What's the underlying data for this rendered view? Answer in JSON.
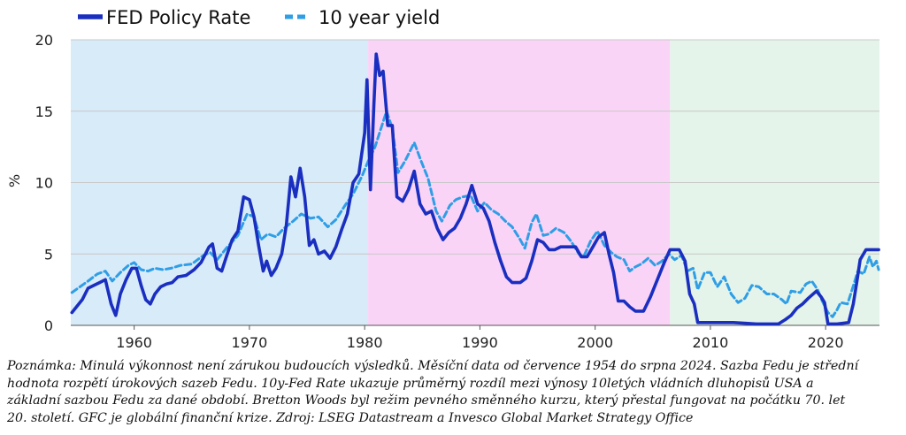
{
  "chart_data": {
    "type": "line",
    "ylabel": "%",
    "xlim": [
      1954.5,
      2024.67
    ],
    "ylim": [
      0,
      20
    ],
    "xticks": [
      1960,
      1970,
      1980,
      1990,
      2000,
      2010,
      2020
    ],
    "yticks": [
      0,
      5,
      10,
      15,
      20
    ],
    "grid": "horizontal",
    "legend": "top-left",
    "regions": [
      {
        "from": 1954.5,
        "to": 1980.3,
        "color": "#d8ebf9"
      },
      {
        "from": 1980.3,
        "to": 2006.5,
        "color": "#fad4f7"
      },
      {
        "from": 2006.5,
        "to": 2024.67,
        "color": "#e4f4ea"
      }
    ],
    "series": [
      {
        "name": "FED Policy Rate",
        "style": "solid",
        "color": "#1a2fc0",
        "points": [
          [
            1954.6,
            0.9
          ],
          [
            1955,
            1.3
          ],
          [
            1955.5,
            1.8
          ],
          [
            1956,
            2.6
          ],
          [
            1956.5,
            2.8
          ],
          [
            1957,
            3.0
          ],
          [
            1957.5,
            3.2
          ],
          [
            1958,
            1.5
          ],
          [
            1958.4,
            0.7
          ],
          [
            1958.8,
            2.2
          ],
          [
            1959.3,
            3.2
          ],
          [
            1959.8,
            4.0
          ],
          [
            1960.2,
            4.0
          ],
          [
            1960.6,
            2.8
          ],
          [
            1961,
            1.8
          ],
          [
            1961.4,
            1.5
          ],
          [
            1961.8,
            2.2
          ],
          [
            1962.3,
            2.7
          ],
          [
            1962.8,
            2.9
          ],
          [
            1963.3,
            3.0
          ],
          [
            1963.8,
            3.4
          ],
          [
            1964.5,
            3.5
          ],
          [
            1965.2,
            3.9
          ],
          [
            1965.8,
            4.4
          ],
          [
            1966.5,
            5.5
          ],
          [
            1966.8,
            5.7
          ],
          [
            1967.2,
            4.0
          ],
          [
            1967.6,
            3.8
          ],
          [
            1968,
            4.8
          ],
          [
            1968.5,
            6.0
          ],
          [
            1969,
            6.6
          ],
          [
            1969.5,
            9.0
          ],
          [
            1970,
            8.8
          ],
          [
            1970.4,
            7.6
          ],
          [
            1970.8,
            5.6
          ],
          [
            1971.2,
            3.8
          ],
          [
            1971.5,
            4.5
          ],
          [
            1971.9,
            3.5
          ],
          [
            1972.3,
            4.0
          ],
          [
            1972.8,
            5.0
          ],
          [
            1973.2,
            7.0
          ],
          [
            1973.6,
            10.4
          ],
          [
            1974,
            9.0
          ],
          [
            1974.4,
            11.0
          ],
          [
            1974.8,
            9.0
          ],
          [
            1975.2,
            5.6
          ],
          [
            1975.6,
            6.0
          ],
          [
            1976,
            5.0
          ],
          [
            1976.5,
            5.2
          ],
          [
            1977,
            4.7
          ],
          [
            1977.5,
            5.5
          ],
          [
            1978,
            6.7
          ],
          [
            1978.5,
            7.8
          ],
          [
            1979,
            10.0
          ],
          [
            1979.5,
            10.6
          ],
          [
            1980,
            13.5
          ],
          [
            1980.2,
            17.2
          ],
          [
            1980.5,
            9.5
          ],
          [
            1980.8,
            15.5
          ],
          [
            1981,
            19.0
          ],
          [
            1981.3,
            17.5
          ],
          [
            1981.6,
            17.8
          ],
          [
            1982,
            14.0
          ],
          [
            1982.4,
            14.0
          ],
          [
            1982.8,
            9.0
          ],
          [
            1983.3,
            8.7
          ],
          [
            1983.8,
            9.5
          ],
          [
            1984.3,
            10.8
          ],
          [
            1984.8,
            8.5
          ],
          [
            1985.3,
            7.8
          ],
          [
            1985.8,
            8.0
          ],
          [
            1986.3,
            6.8
          ],
          [
            1986.8,
            6.0
          ],
          [
            1987.3,
            6.5
          ],
          [
            1987.8,
            6.8
          ],
          [
            1988.3,
            7.5
          ],
          [
            1988.8,
            8.5
          ],
          [
            1989.3,
            9.8
          ],
          [
            1989.8,
            8.5
          ],
          [
            1990.3,
            8.2
          ],
          [
            1990.8,
            7.3
          ],
          [
            1991.3,
            5.8
          ],
          [
            1991.8,
            4.5
          ],
          [
            1992.3,
            3.4
          ],
          [
            1992.8,
            3.0
          ],
          [
            1993.5,
            3.0
          ],
          [
            1994,
            3.3
          ],
          [
            1994.5,
            4.5
          ],
          [
            1995,
            6.0
          ],
          [
            1995.5,
            5.8
          ],
          [
            1996,
            5.3
          ],
          [
            1996.5,
            5.3
          ],
          [
            1997,
            5.5
          ],
          [
            1997.5,
            5.5
          ],
          [
            1998.3,
            5.5
          ],
          [
            1998.8,
            4.8
          ],
          [
            1999.3,
            4.8
          ],
          [
            1999.8,
            5.5
          ],
          [
            2000.3,
            6.2
          ],
          [
            2000.8,
            6.5
          ],
          [
            2001.2,
            5.0
          ],
          [
            2001.6,
            3.7
          ],
          [
            2002,
            1.7
          ],
          [
            2002.5,
            1.7
          ],
          [
            2003,
            1.3
          ],
          [
            2003.5,
            1.0
          ],
          [
            2004.2,
            1.0
          ],
          [
            2004.8,
            2.0
          ],
          [
            2005.4,
            3.2
          ],
          [
            2006,
            4.4
          ],
          [
            2006.5,
            5.3
          ],
          [
            2007.3,
            5.3
          ],
          [
            2007.8,
            4.5
          ],
          [
            2008.2,
            2.2
          ],
          [
            2008.6,
            1.5
          ],
          [
            2008.9,
            0.2
          ],
          [
            2010,
            0.2
          ],
          [
            2012,
            0.2
          ],
          [
            2014,
            0.1
          ],
          [
            2015.9,
            0.1
          ],
          [
            2016.5,
            0.4
          ],
          [
            2017,
            0.7
          ],
          [
            2017.5,
            1.2
          ],
          [
            2018,
            1.5
          ],
          [
            2018.5,
            1.9
          ],
          [
            2019.2,
            2.4
          ],
          [
            2019.6,
            2.0
          ],
          [
            2019.9,
            1.6
          ],
          [
            2020.2,
            0.1
          ],
          [
            2021,
            0.1
          ],
          [
            2022,
            0.2
          ],
          [
            2022.4,
            1.5
          ],
          [
            2022.7,
            3.0
          ],
          [
            2023,
            4.6
          ],
          [
            2023.5,
            5.3
          ],
          [
            2024,
            5.3
          ],
          [
            2024.6,
            5.3
          ]
        ]
      },
      {
        "name": "10 year yield",
        "style": "dashed",
        "color": "#2f9ee6",
        "points": [
          [
            1954.6,
            2.3
          ],
          [
            1955.3,
            2.7
          ],
          [
            1956,
            3.1
          ],
          [
            1956.8,
            3.6
          ],
          [
            1957.5,
            3.8
          ],
          [
            1958.1,
            3.1
          ],
          [
            1958.8,
            3.7
          ],
          [
            1959.5,
            4.2
          ],
          [
            1960,
            4.4
          ],
          [
            1960.6,
            3.9
          ],
          [
            1961.2,
            3.8
          ],
          [
            1961.8,
            4.0
          ],
          [
            1962.5,
            3.9
          ],
          [
            1963.2,
            4.0
          ],
          [
            1964,
            4.2
          ],
          [
            1965,
            4.3
          ],
          [
            1966,
            4.9
          ],
          [
            1966.6,
            5.1
          ],
          [
            1967.2,
            4.6
          ],
          [
            1968,
            5.4
          ],
          [
            1969,
            6.3
          ],
          [
            1969.8,
            7.8
          ],
          [
            1970.4,
            7.6
          ],
          [
            1971,
            6.0
          ],
          [
            1971.6,
            6.4
          ],
          [
            1972.3,
            6.2
          ],
          [
            1973,
            6.8
          ],
          [
            1973.8,
            7.3
          ],
          [
            1974.5,
            7.8
          ],
          [
            1975.3,
            7.5
          ],
          [
            1976,
            7.6
          ],
          [
            1976.8,
            6.9
          ],
          [
            1977.5,
            7.4
          ],
          [
            1978.3,
            8.4
          ],
          [
            1979,
            9.2
          ],
          [
            1979.8,
            10.5
          ],
          [
            1980.3,
            11.5
          ],
          [
            1980.9,
            12.5
          ],
          [
            1981.5,
            14.0
          ],
          [
            1981.9,
            15.0
          ],
          [
            1982.4,
            13.8
          ],
          [
            1982.9,
            10.7
          ],
          [
            1983.5,
            11.5
          ],
          [
            1984.3,
            12.8
          ],
          [
            1984.9,
            11.5
          ],
          [
            1985.5,
            10.3
          ],
          [
            1986.2,
            8.0
          ],
          [
            1986.7,
            7.3
          ],
          [
            1987.4,
            8.4
          ],
          [
            1987.9,
            8.8
          ],
          [
            1988.5,
            9.0
          ],
          [
            1989.2,
            9.1
          ],
          [
            1989.8,
            8.0
          ],
          [
            1990.4,
            8.6
          ],
          [
            1991,
            8.1
          ],
          [
            1991.6,
            7.8
          ],
          [
            1992.2,
            7.3
          ],
          [
            1992.8,
            6.9
          ],
          [
            1993.5,
            6.0
          ],
          [
            1993.9,
            5.4
          ],
          [
            1994.5,
            7.2
          ],
          [
            1994.9,
            7.8
          ],
          [
            1995.5,
            6.3
          ],
          [
            1996,
            6.4
          ],
          [
            1996.6,
            6.8
          ],
          [
            1997.3,
            6.5
          ],
          [
            1997.9,
            5.9
          ],
          [
            1998.6,
            5.0
          ],
          [
            1999,
            4.8
          ],
          [
            1999.6,
            5.9
          ],
          [
            2000.2,
            6.6
          ],
          [
            2000.8,
            5.6
          ],
          [
            2001.4,
            5.1
          ],
          [
            2001.9,
            4.8
          ],
          [
            2002.5,
            4.6
          ],
          [
            2003,
            3.8
          ],
          [
            2003.5,
            4.1
          ],
          [
            2004,
            4.3
          ],
          [
            2004.6,
            4.7
          ],
          [
            2005.2,
            4.2
          ],
          [
            2005.8,
            4.5
          ],
          [
            2006.4,
            5.0
          ],
          [
            2006.9,
            4.6
          ],
          [
            2007.5,
            4.9
          ],
          [
            2008,
            3.8
          ],
          [
            2008.5,
            4.0
          ],
          [
            2008.9,
            2.5
          ],
          [
            2009.5,
            3.7
          ],
          [
            2010,
            3.7
          ],
          [
            2010.6,
            2.7
          ],
          [
            2011.2,
            3.4
          ],
          [
            2011.8,
            2.2
          ],
          [
            2012.4,
            1.6
          ],
          [
            2013,
            1.9
          ],
          [
            2013.6,
            2.8
          ],
          [
            2014.2,
            2.7
          ],
          [
            2014.9,
            2.2
          ],
          [
            2015.5,
            2.2
          ],
          [
            2016.2,
            1.8
          ],
          [
            2016.6,
            1.5
          ],
          [
            2017,
            2.4
          ],
          [
            2017.8,
            2.3
          ],
          [
            2018.3,
            2.9
          ],
          [
            2018.8,
            3.1
          ],
          [
            2019.3,
            2.5
          ],
          [
            2019.7,
            1.7
          ],
          [
            2020.2,
            0.9
          ],
          [
            2020.6,
            0.6
          ],
          [
            2021,
            1.1
          ],
          [
            2021.3,
            1.6
          ],
          [
            2021.9,
            1.5
          ],
          [
            2022.3,
            2.5
          ],
          [
            2022.8,
            3.8
          ],
          [
            2023.3,
            3.6
          ],
          [
            2023.8,
            4.8
          ],
          [
            2024.1,
            4.1
          ],
          [
            2024.4,
            4.5
          ],
          [
            2024.6,
            3.9
          ]
        ]
      }
    ]
  },
  "note": {
    "line1": "Poznámka: Minulá výkonnost není zárukou budoucích výsledků. Měsíční data od července 1954 do srpna 2024. Sazba Fedu je střední",
    "line2": "hodnota rozpětí úrokových sazeb Fedu. 10y-Fed Rate ukazuje průměrný rozdíl mezi výnosy 10letých vládních dluhopisů USA a",
    "line3": "základní sazbou Fedu za dané období. Bretton Woods byl režim pevného směnného kurzu, který přestal fungovat na počátku 70. let",
    "line4": "20. století. GFC je globální finanční krize. Zdroj: LSEG Datastream a Invesco Global Market Strategy Office"
  }
}
